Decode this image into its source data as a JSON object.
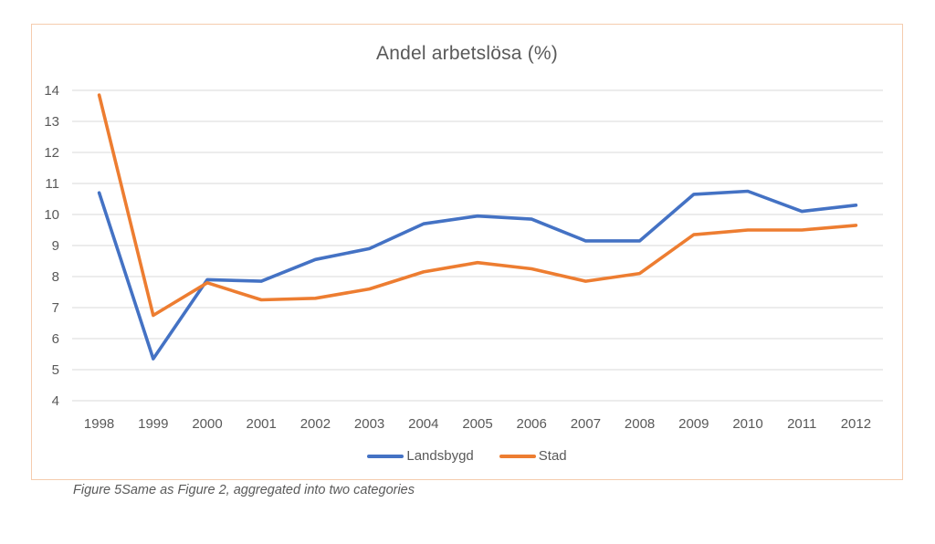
{
  "page": {
    "caption": "Figure 5Same as Figure 2, aggregated into two categories"
  },
  "chart_data": {
    "type": "line",
    "title": "Andel arbetslösa (%)",
    "xlabel": "",
    "ylabel": "",
    "categories": [
      "1998",
      "1999",
      "2000",
      "2001",
      "2002",
      "2003",
      "2004",
      "2005",
      "2006",
      "2007",
      "2008",
      "2009",
      "2010",
      "2011",
      "2012"
    ],
    "series": [
      {
        "name": "Landsbygd",
        "color": "#4472C4",
        "values": [
          10.7,
          5.35,
          7.9,
          7.85,
          8.55,
          8.9,
          9.7,
          9.95,
          9.85,
          9.15,
          9.15,
          10.65,
          10.75,
          10.1,
          10.3
        ]
      },
      {
        "name": "Stad",
        "color": "#ED7D31",
        "values": [
          13.85,
          6.75,
          7.8,
          7.25,
          7.3,
          7.6,
          8.15,
          8.45,
          8.25,
          7.85,
          8.1,
          9.35,
          9.5,
          9.5,
          9.65
        ]
      }
    ],
    "ylim": [
      4,
      14
    ],
    "ytick_step": 1,
    "grid": true,
    "legend_position": "bottom"
  },
  "colors": {
    "axis_text": "#595959",
    "title_text": "#595959",
    "gridline": "#D9D9D9",
    "frame_border": "#F5CCAE",
    "caption_text": "#595959",
    "series_landsbygd": "#4472C4",
    "series_stad": "#ED7D31"
  }
}
